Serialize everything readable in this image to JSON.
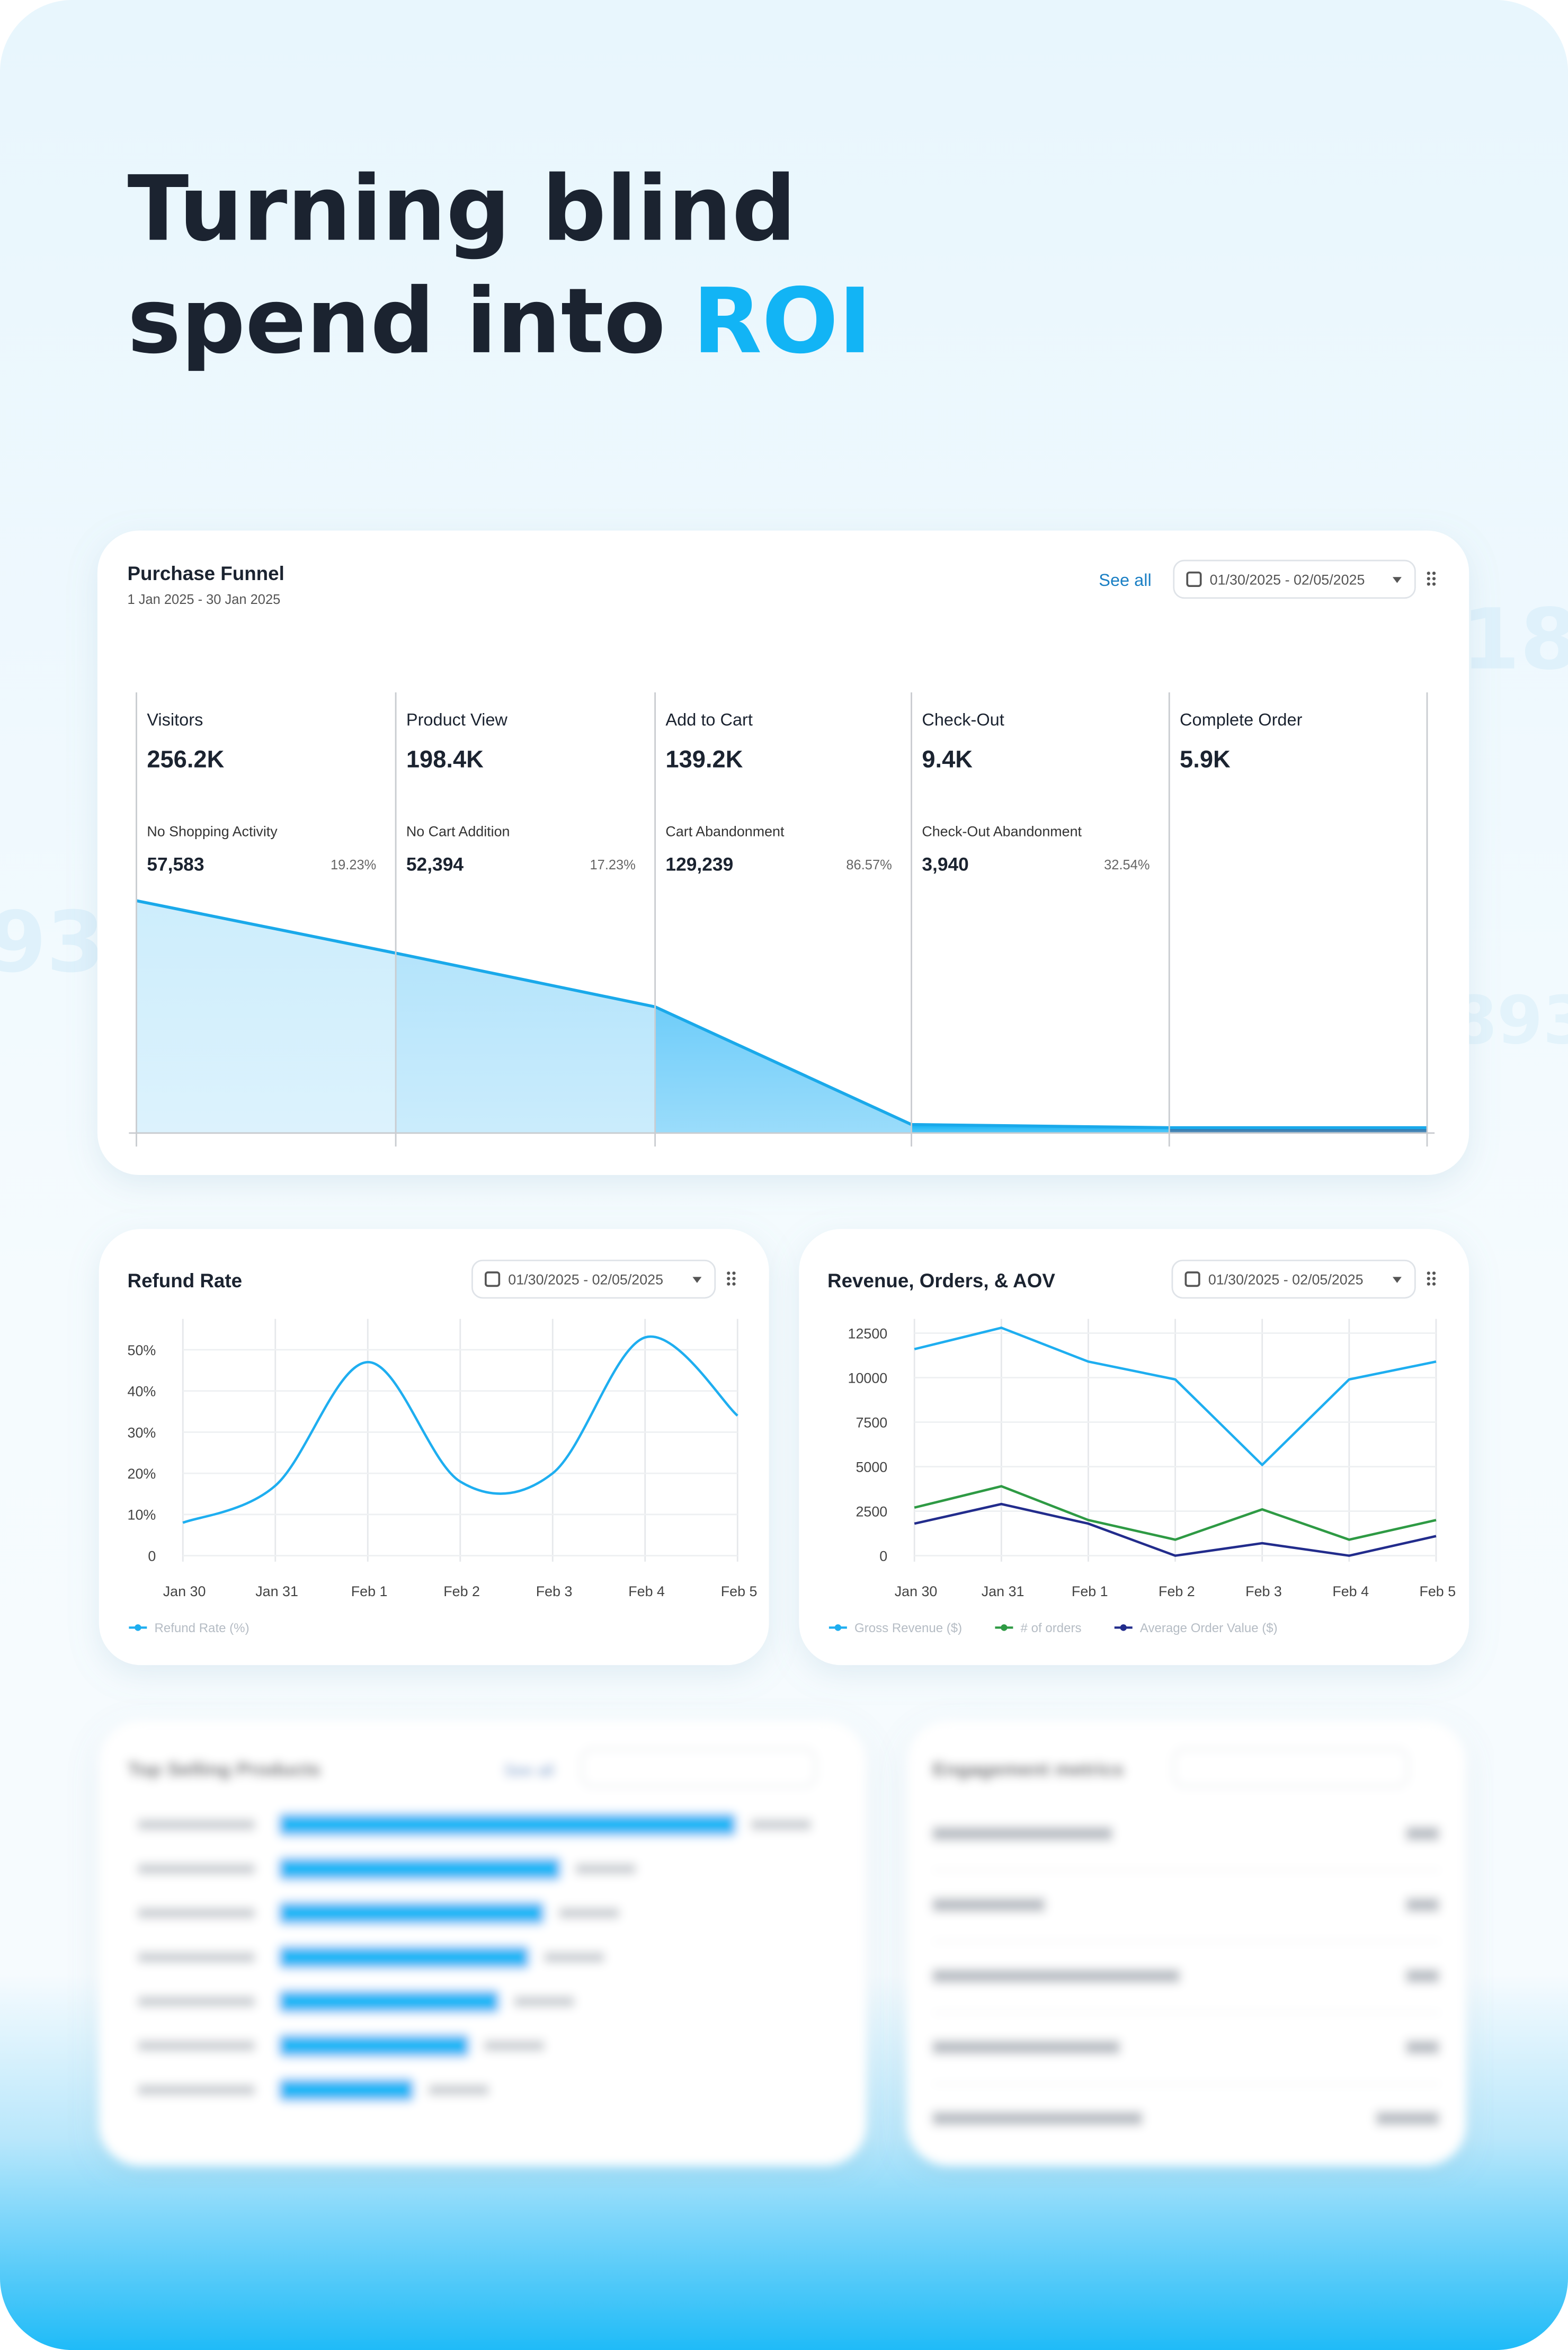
{
  "headline": {
    "line1": "Turning blind",
    "line2": "spend into",
    "highlight": "ROI"
  },
  "decor": [
    "18",
    "93",
    "893"
  ],
  "chart_data": [
    {
      "type": "funnel",
      "title": "Purchase Funnel",
      "subtitle": "1 Jan 2025 - 30 Jan 2025",
      "link": "See all",
      "date_range": "01/30/2025 - 02/05/2025",
      "categories": [
        "Visitors",
        "Product View",
        "Add to Cart",
        "Check-Out",
        "Complete Order"
      ],
      "values": [
        256200,
        198400,
        139200,
        9400,
        5900
      ],
      "value_labels": [
        "256.2K",
        "198.4K",
        "139.2K",
        "9.4K",
        "5.9K"
      ],
      "drop_names": [
        "No Shopping Activity",
        "No Cart Addition",
        "Cart Abandonment",
        "Check-Out Abandonment",
        null
      ],
      "drop_values": [
        57583,
        52394,
        129239,
        3940,
        null
      ],
      "drop_value_labels": [
        "57,583",
        "52,394",
        "129,239",
        "3,940",
        null
      ],
      "drop_rates": [
        19.23,
        17.23,
        86.57,
        32.54,
        null
      ],
      "drop_rate_labels": [
        "19.23%",
        "17.23%",
        "86.57%",
        "32.54%",
        null
      ],
      "line_color": "#1aa9ea",
      "colors": [
        "#cdedfc",
        "#b4e4fb",
        "#6fcdf9",
        "#10b2f5",
        "#1c6aa6"
      ]
    },
    {
      "type": "line",
      "title": "Refund Rate",
      "date_range": "01/30/2025 - 02/05/2025",
      "smooth": true,
      "categories": [
        "Jan 30",
        "Jan 31",
        "Feb 1",
        "Feb 2",
        "Feb 3",
        "Feb 4",
        "Feb 5"
      ],
      "series": [
        {
          "name": "Refund Rate (%)",
          "color": "#1eaef0",
          "values": [
            8,
            17,
            47,
            18,
            20,
            53,
            34
          ]
        }
      ],
      "ylim": [
        0,
        57.5
      ],
      "yticks": [
        0,
        {
          "value": 10,
          "label": "10%"
        },
        {
          "value": 20,
          "label": "20%"
        },
        {
          "value": 30,
          "label": "30%"
        },
        {
          "value": 40,
          "label": "40%"
        },
        {
          "value": 50,
          "label": "50%"
        }
      ],
      "grid": true
    },
    {
      "type": "line",
      "title": "Revenue, Orders, & AOV",
      "date_range": "01/30/2025 - 02/05/2025",
      "smooth": false,
      "categories": [
        "Jan 30",
        "Jan 31",
        "Feb 1",
        "Feb 2",
        "Feb 3",
        "Feb 4",
        "Feb 5"
      ],
      "series": [
        {
          "name": "Gross Revenue ($)",
          "color": "#1eaef0",
          "values": [
            11600,
            12800,
            10900,
            9900,
            5100,
            9900,
            10900
          ]
        },
        {
          "name": "# of orders",
          "color": "#2e9a44",
          "values": [
            2700,
            3900,
            2000,
            900,
            2600,
            900,
            2000
          ]
        },
        {
          "name": "Average Order Value ($)",
          "color": "#222c8c",
          "values": [
            1800,
            2900,
            1800,
            0,
            700,
            0,
            1100
          ]
        }
      ],
      "ylim": [
        0,
        13300
      ],
      "yticks": [
        0,
        2500,
        5000,
        7500,
        10000,
        12500
      ],
      "grid": true
    },
    {
      "type": "blurred-bars",
      "title": "Top Selling Products",
      "link": "See all"
    },
    {
      "type": "blurred-list",
      "title": "Engagement metrics"
    }
  ]
}
